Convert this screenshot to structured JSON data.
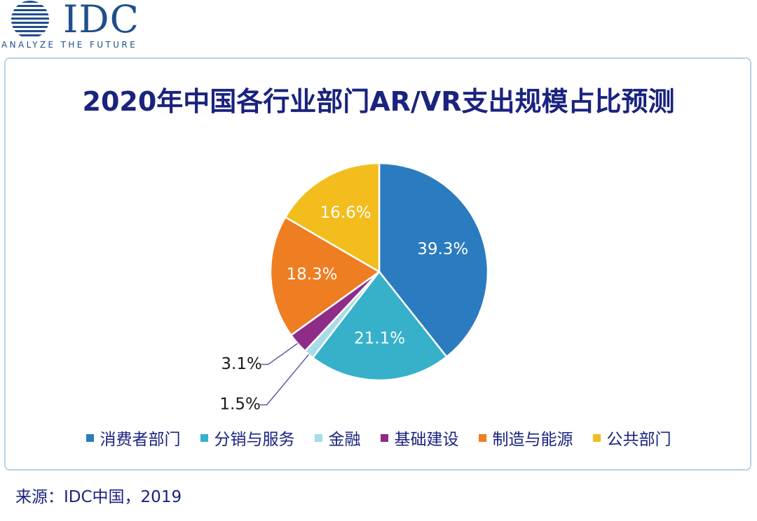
{
  "brand": {
    "name": "IDC",
    "tagline": "ANALYZE THE FUTURE"
  },
  "chart_data": {
    "type": "pie",
    "title": "2020年中国各行业部门AR/VR支出规模占比预测",
    "categories": [
      "消费者部门",
      "分销与服务",
      "金融",
      "基础建设",
      "制造与能源",
      "公共部门"
    ],
    "values": [
      39.3,
      21.1,
      1.5,
      3.1,
      18.3,
      16.6
    ],
    "labels": [
      "39.3%",
      "21.1%",
      "1.5%",
      "3.1%",
      "18.3%",
      "16.6%"
    ],
    "colors": [
      "#2b7bc0",
      "#36b1c9",
      "#a9dbe8",
      "#8e2c87",
      "#ef7d22",
      "#f2bd1d"
    ],
    "legend_position": "bottom"
  },
  "footer": {
    "source": "来源：IDC中国，2019"
  }
}
